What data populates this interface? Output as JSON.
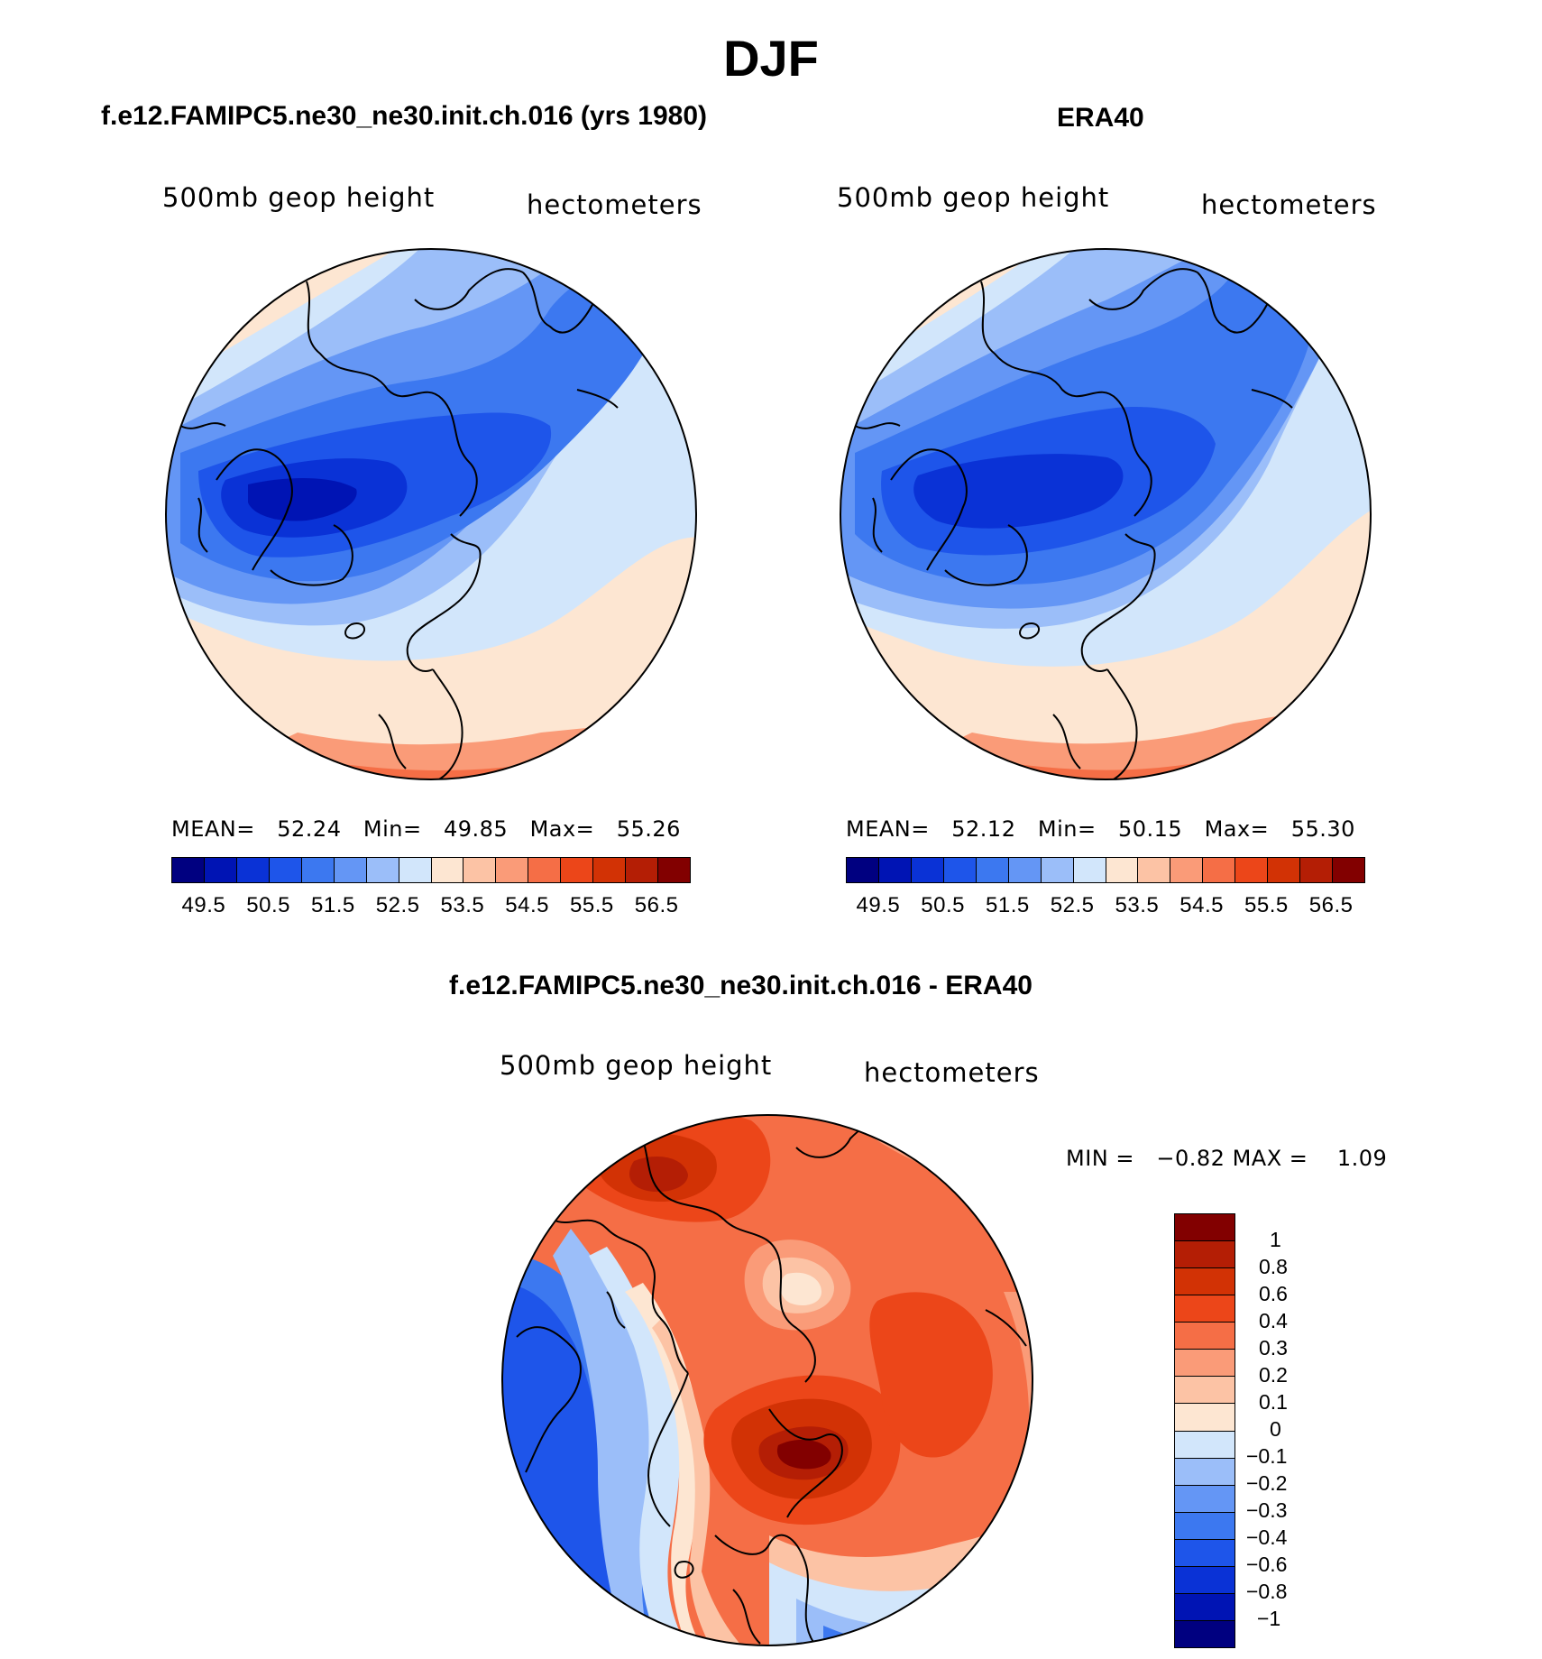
{
  "season": "DJF",
  "panels": {
    "model": {
      "title": "f.e12.FAMIPC5.ne30_ne30.init.ch.016 (yrs 1980)",
      "variable": "500mb geop height",
      "units": "hectometers",
      "stats": {
        "mean_label": "MEAN=",
        "mean": "52.24",
        "min_label": "Min=",
        "min": "49.85",
        "max_label": "Max=",
        "max": "55.26"
      }
    },
    "obs": {
      "title": "ERA40",
      "variable": "500mb geop height",
      "units": "hectometers",
      "stats": {
        "mean_label": "MEAN=",
        "mean": "52.12",
        "min_label": "Min=",
        "min": "50.15",
        "max_label": "Max=",
        "max": "55.30"
      }
    },
    "diff": {
      "title": "f.e12.FAMIPC5.ne30_ne30.init.ch.016 - ERA40",
      "variable": "500mb geop height",
      "units": "hectometers",
      "stats": {
        "min_label": "MIN =",
        "min": "−0.82",
        "max_label": "MAX =",
        "max": "1.09"
      }
    }
  },
  "colorbars": {
    "height": {
      "tick_labels": [
        "49.5",
        "50.5",
        "51.5",
        "52.5",
        "53.5",
        "54.5",
        "55.5",
        "56.5"
      ],
      "colors": [
        "#000080",
        "#0014b4",
        "#0a32d6",
        "#1e55ea",
        "#3c78f0",
        "#6496f5",
        "#9bbef9",
        "#d2e6fb",
        "#fde6d2",
        "#fcc3a5",
        "#fa9b78",
        "#f56e46",
        "#ec4619",
        "#d23205",
        "#b41e05",
        "#820000"
      ]
    },
    "difference": {
      "tick_labels": [
        "1",
        "0.8",
        "0.6",
        "0.4",
        "0.3",
        "0.2",
        "0.1",
        "0",
        "−0.1",
        "−0.2",
        "−0.3",
        "−0.4",
        "−0.6",
        "−0.8",
        "−1"
      ],
      "colors": [
        "#820000",
        "#b41e05",
        "#d23205",
        "#ec4619",
        "#f56e46",
        "#fa9b78",
        "#fcc3a5",
        "#fde6d2",
        "#d2e6fb",
        "#9bbef9",
        "#6496f5",
        "#3c78f0",
        "#1e55ea",
        "#0a32d6",
        "#0014b4",
        "#000080"
      ]
    }
  }
}
